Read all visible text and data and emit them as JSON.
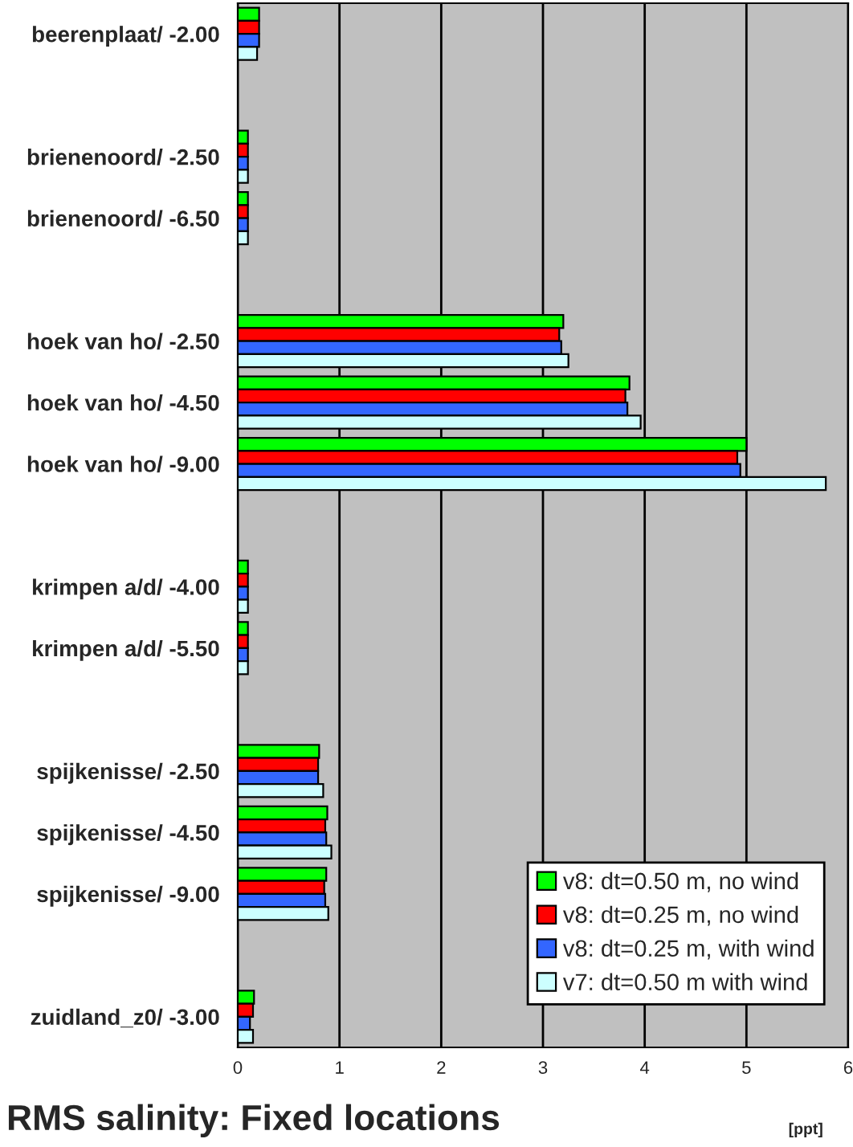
{
  "chart_data": {
    "type": "bar",
    "orientation": "horizontal",
    "title": "RMS salinity: Fixed locations",
    "xlabel": "[ppt]",
    "categories": [
      "beerenplaat/ -2.00",
      null,
      "brienenoord/ -2.50",
      "brienenoord/ -6.50",
      null,
      "hoek van ho/ -2.50",
      "hoek van ho/ -4.50",
      "hoek van ho/ -9.00",
      null,
      "krimpen a/d/ -4.00",
      "krimpen a/d/ -5.50",
      null,
      "spijkenisse/ -2.50",
      "spijkenisse/ -4.50",
      "spijkenisse/ -9.00",
      null,
      "zuidland_z0/ -3.00"
    ],
    "series": [
      {
        "name": "v8: dt=0.50 m, no wind",
        "color": "#00ff00",
        "values": [
          0.21,
          null,
          0.1,
          0.1,
          null,
          3.2,
          3.85,
          5.0,
          null,
          0.1,
          0.1,
          null,
          0.8,
          0.88,
          0.87,
          null,
          0.16
        ]
      },
      {
        "name": "v8: dt=0.25 m, no wind",
        "color": "#ff0000",
        "values": [
          0.21,
          null,
          0.1,
          0.1,
          null,
          3.16,
          3.81,
          4.91,
          null,
          0.1,
          0.1,
          null,
          0.79,
          0.86,
          0.85,
          null,
          0.15
        ]
      },
      {
        "name": "v8: dt=0.25 m, with wind",
        "color": "#3366ff",
        "values": [
          0.21,
          null,
          0.1,
          0.1,
          null,
          3.18,
          3.83,
          4.94,
          null,
          0.1,
          0.1,
          null,
          0.79,
          0.87,
          0.86,
          null,
          0.12
        ]
      },
      {
        "name": "v7: dt=0.50 m with wind",
        "color": "#ccffff",
        "values": [
          0.19,
          null,
          0.1,
          0.1,
          null,
          3.25,
          3.96,
          5.78,
          null,
          0.1,
          0.1,
          null,
          0.84,
          0.92,
          0.89,
          null,
          0.15
        ]
      }
    ],
    "xlim": [
      0,
      6
    ],
    "xticks": [
      0,
      1,
      2,
      3,
      4,
      5,
      6
    ],
    "grid": "x",
    "legend": "bottom right"
  }
}
